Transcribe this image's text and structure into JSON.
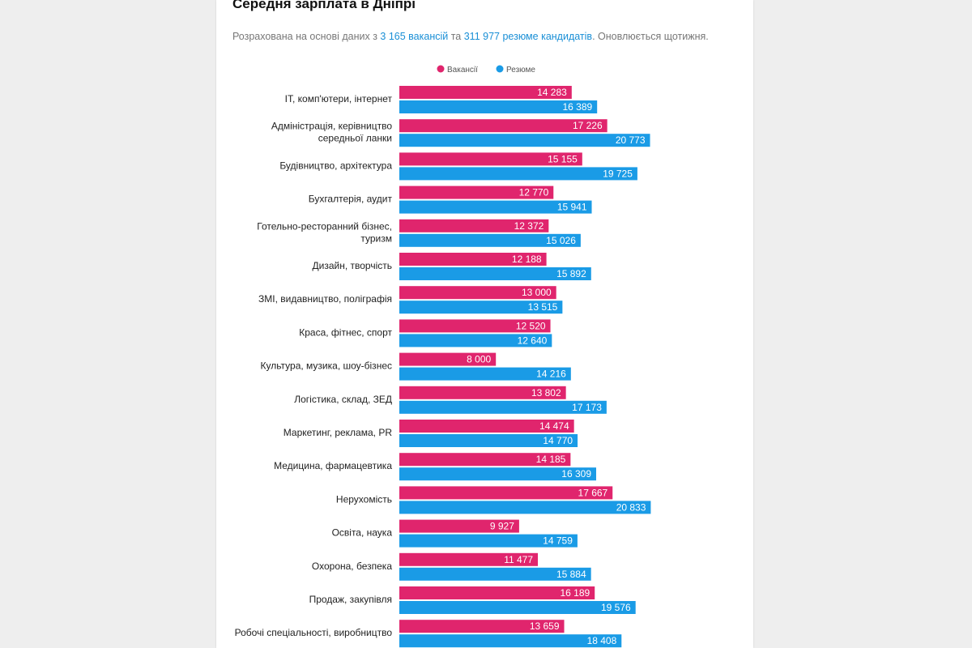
{
  "header": {
    "title": "Середня зарплата в Дніпрі",
    "subtitle_prefix": "Розрахована на основі даних з ",
    "vacancies_link": "3 165 вакансій",
    "subtitle_middle": " та ",
    "resumes_link": "311 977 резюме кандидатів",
    "subtitle_suffix": ". Оновлюється щотижня."
  },
  "colors": {
    "vacancies": "#e0256d",
    "resumes": "#1a9be6"
  },
  "chart_data": {
    "type": "bar",
    "orientation": "horizontal",
    "legend_position": "top",
    "grid": false,
    "categories": [
      [
        "IT, комп'ютери, інтернет"
      ],
      [
        "Адміністрація, керівництво",
        "середньої ланки"
      ],
      [
        "Будівництво, архітектура"
      ],
      [
        "Бухгалтерія, аудит"
      ],
      [
        "Готельно-ресторанний бізнес,",
        "туризм"
      ],
      [
        "Дизайн, творчість"
      ],
      [
        "ЗМІ, видавництво, поліграфія"
      ],
      [
        "Краса, фітнес, спорт"
      ],
      [
        "Культура, музика, шоу-бізнес"
      ],
      [
        "Логістика, склад, ЗЕД"
      ],
      [
        "Маркетинг, реклама, PR"
      ],
      [
        "Медицина, фармацевтика"
      ],
      [
        "Нерухомість"
      ],
      [
        "Освіта, наука"
      ],
      [
        "Охорона, безпека"
      ],
      [
        "Продаж, закупівля"
      ],
      [
        "Робочі спеціальності, виробництво"
      ]
    ],
    "series": [
      {
        "name": "Вакансії",
        "values": [
          14283,
          17226,
          15155,
          12770,
          12372,
          12188,
          13000,
          12520,
          8000,
          13802,
          14474,
          14185,
          17667,
          9927,
          11477,
          16189,
          13659
        ],
        "labels": [
          "14 283",
          "17 226",
          "15 155",
          "12 770",
          "12 372",
          "12 188",
          "13 000",
          "12 520",
          "8 000",
          "13 802",
          "14 474",
          "14 185",
          "17 667",
          "9 927",
          "11 477",
          "16 189",
          "13 659"
        ]
      },
      {
        "name": "Резюме",
        "values": [
          16389,
          20773,
          19725,
          15941,
          15026,
          15892,
          13515,
          12640,
          14216,
          17173,
          14770,
          16309,
          20833,
          14759,
          15884,
          19576,
          18408
        ],
        "labels": [
          "16 389",
          "20 773",
          "19 725",
          "15 941",
          "15 026",
          "15 892",
          "13 515",
          "12 640",
          "14 216",
          "17 173",
          "14 770",
          "16 309",
          "20 833",
          "14 759",
          "15 884",
          "19 576",
          "18 408"
        ]
      }
    ]
  }
}
